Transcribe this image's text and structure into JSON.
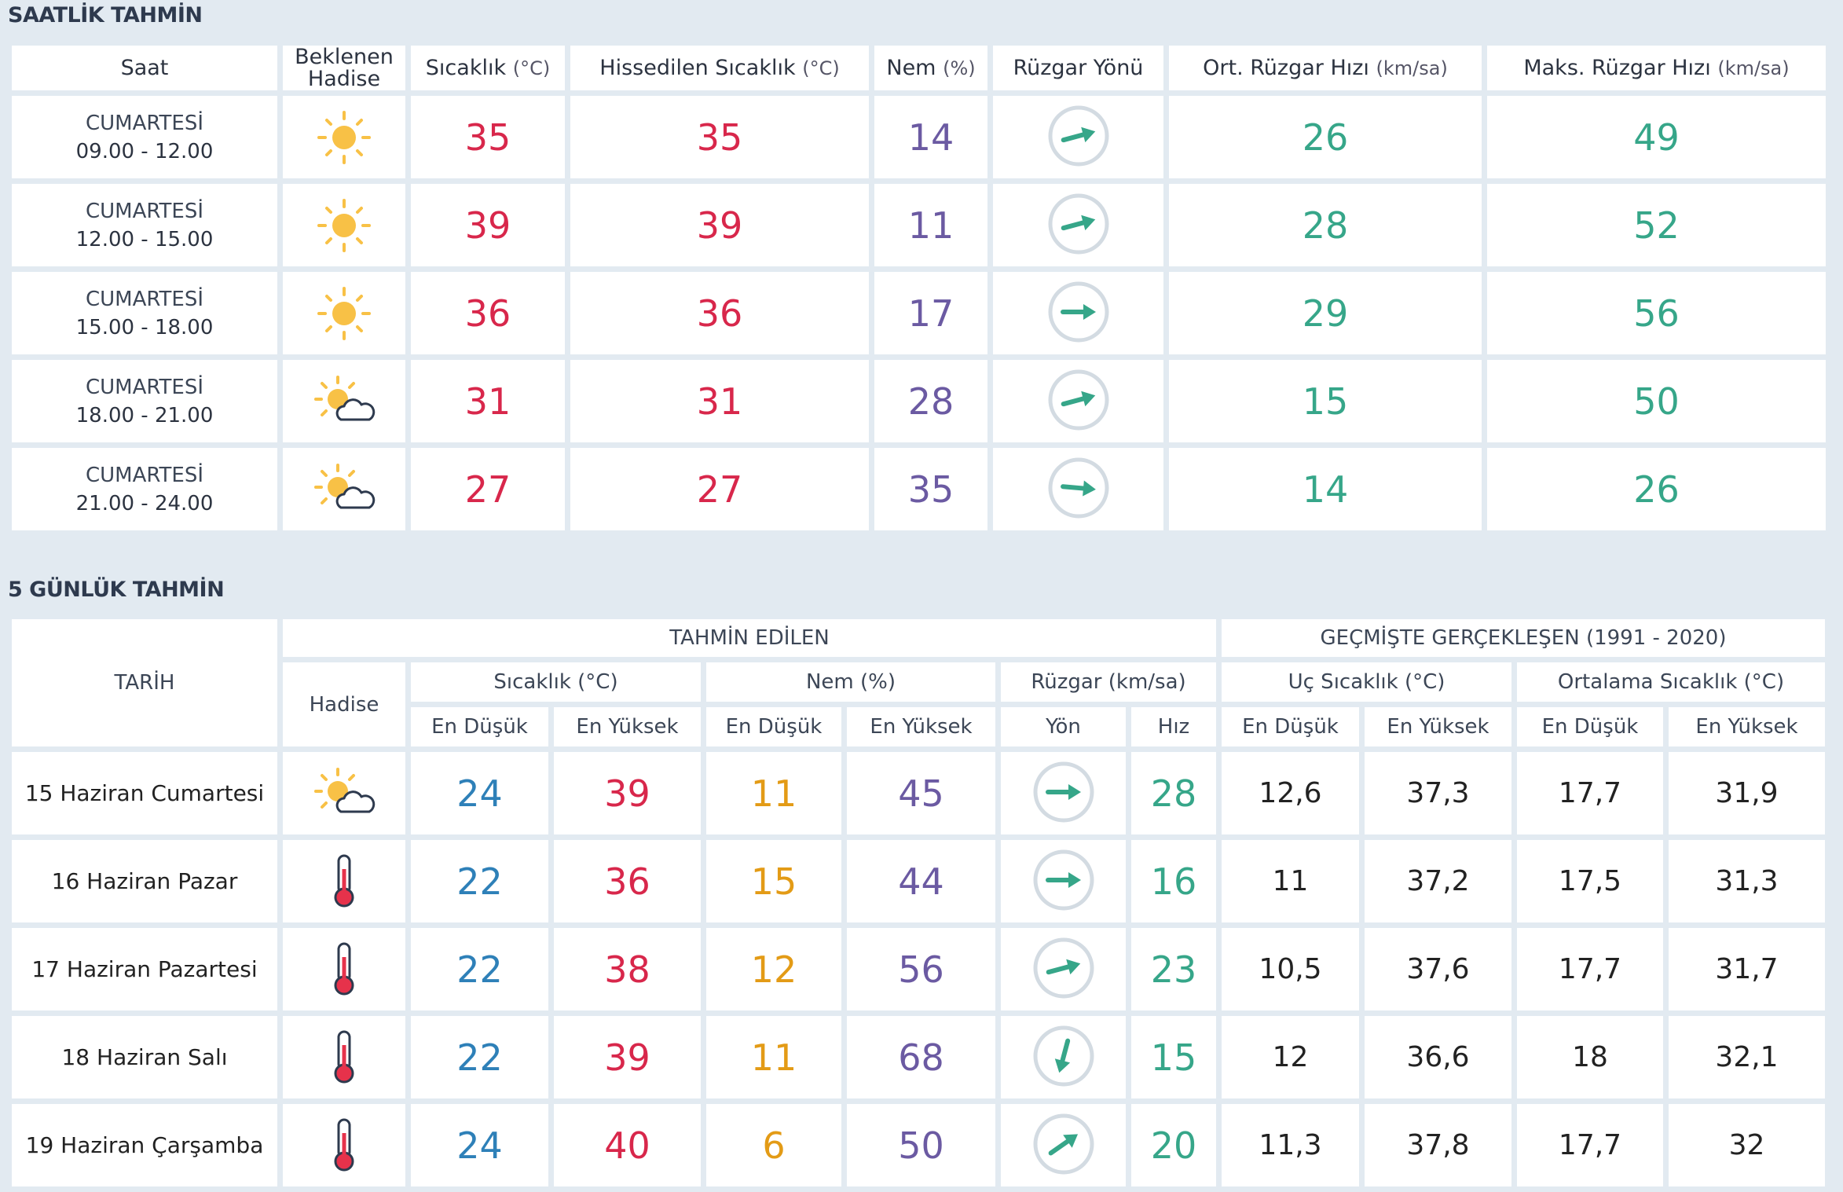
{
  "hourly": {
    "title": "SAATLİK TAHMİN",
    "headers": {
      "saat": "Saat",
      "hadise_1": "Beklenen",
      "hadise_2": "Hadise",
      "temp": "Sıcaklık",
      "temp_unit": "(°C)",
      "feel": "Hissedilen Sıcaklık",
      "feel_unit": "(°C)",
      "hum": "Nem",
      "hum_unit": "(%)",
      "wind_dir": "Rüzgar Yönü",
      "avg_wind": "Ort. Rüzgar Hızı",
      "avg_unit": "(km/sa)",
      "max_wind": "Maks. Rüzgar Hızı",
      "max_unit": "(km/sa)"
    },
    "rows": [
      {
        "day": "CUMARTESİ",
        "time": "09.00 - 12.00",
        "icon": "sun-icon",
        "temp": "35",
        "feel": "35",
        "hum": "14",
        "wind_deg": -15,
        "avg": "26",
        "max": "49"
      },
      {
        "day": "CUMARTESİ",
        "time": "12.00 - 15.00",
        "icon": "sun-icon",
        "temp": "39",
        "feel": "39",
        "hum": "11",
        "wind_deg": -15,
        "avg": "28",
        "max": "52"
      },
      {
        "day": "CUMARTESİ",
        "time": "15.00 - 18.00",
        "icon": "sun-icon",
        "temp": "36",
        "feel": "36",
        "hum": "17",
        "wind_deg": 0,
        "avg": "29",
        "max": "56"
      },
      {
        "day": "CUMARTESİ",
        "time": "18.00 - 21.00",
        "icon": "partly-cloudy-icon",
        "temp": "31",
        "feel": "31",
        "hum": "28",
        "wind_deg": -15,
        "avg": "15",
        "max": "50"
      },
      {
        "day": "CUMARTESİ",
        "time": "21.00 - 24.00",
        "icon": "partly-cloudy-icon",
        "temp": "27",
        "feel": "27",
        "hum": "35",
        "wind_deg": 5,
        "avg": "14",
        "max": "26"
      }
    ]
  },
  "daily": {
    "title": "5 GÜNLÜK TAHMİN",
    "headers": {
      "tarih": "TARİH",
      "forecast": "TAHMİN EDİLEN",
      "history": "GEÇMİŞTE GERÇEKLEŞEN (1991 - 2020)",
      "hadise": "Hadise",
      "temp": "Sıcaklık (°C)",
      "hum": "Nem (%)",
      "wind": "Rüzgar (km/sa)",
      "extreme": "Uç Sıcaklık (°C)",
      "avg": "Ortalama Sıcaklık (°C)",
      "min": "En Düşük",
      "max": "En Yüksek",
      "dir": "Yön",
      "speed": "Hız"
    },
    "rows": [
      {
        "date": "15 Haziran Cumartesi",
        "icon": "partly-cloudy-icon",
        "tmin": "24",
        "tmax": "39",
        "hmin": "11",
        "hmax": "45",
        "wind_deg": 0,
        "speed": "28",
        "ext_min": "12,6",
        "ext_max": "37,3",
        "avg_min": "17,7",
        "avg_max": "31,9"
      },
      {
        "date": "16 Haziran Pazar",
        "icon": "thermometer-icon",
        "tmin": "22",
        "tmax": "36",
        "hmin": "15",
        "hmax": "44",
        "wind_deg": 0,
        "speed": "16",
        "ext_min": "11",
        "ext_max": "37,2",
        "avg_min": "17,5",
        "avg_max": "31,3"
      },
      {
        "date": "17 Haziran Pazartesi",
        "icon": "thermometer-icon",
        "tmin": "22",
        "tmax": "38",
        "hmin": "12",
        "hmax": "56",
        "wind_deg": -15,
        "speed": "23",
        "ext_min": "10,5",
        "ext_max": "37,6",
        "avg_min": "17,7",
        "avg_max": "31,7"
      },
      {
        "date": "18 Haziran Salı",
        "icon": "thermometer-icon",
        "tmin": "22",
        "tmax": "39",
        "hmin": "11",
        "hmax": "68",
        "wind_deg": 105,
        "speed": "15",
        "ext_min": "12",
        "ext_max": "36,6",
        "avg_min": "18",
        "avg_max": "32,1"
      },
      {
        "date": "19 Haziran Çarşamba",
        "icon": "thermometer-icon",
        "tmin": "24",
        "tmax": "40",
        "hmin": "6",
        "hmax": "50",
        "wind_deg": -35,
        "speed": "20",
        "ext_min": "11,3",
        "ext_max": "37,8",
        "avg_min": "17,7",
        "avg_max": "32"
      }
    ]
  },
  "colors": {
    "temp": "#d8274b",
    "humidity": "#6b5aa2",
    "wind": "#36a689",
    "min": "#2e80b8",
    "hum_min": "#e39b16"
  }
}
